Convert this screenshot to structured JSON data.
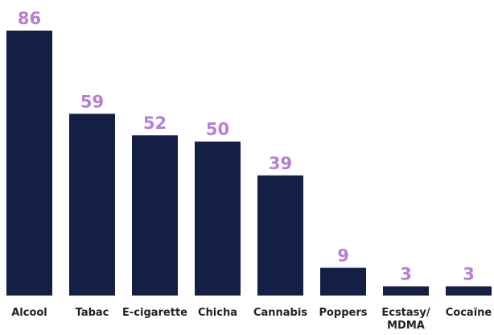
{
  "chart_data": {
    "type": "bar",
    "categories": [
      [
        "Alcool"
      ],
      [
        "Tabac"
      ],
      [
        "E-cigarette"
      ],
      [
        "Chicha"
      ],
      [
        "Cannabis"
      ],
      [
        "Poppers"
      ],
      [
        "Ecstasy/",
        "MDMA"
      ],
      [
        "Cocaïne"
      ]
    ],
    "values": [
      86,
      59,
      52,
      50,
      39,
      9,
      3,
      3
    ],
    "ylim": [
      0,
      86
    ],
    "grid": false,
    "legend": "none",
    "colors": {
      "bar": "#131f44",
      "value_label": "#b67fd2",
      "category_label": "#222222"
    }
  }
}
